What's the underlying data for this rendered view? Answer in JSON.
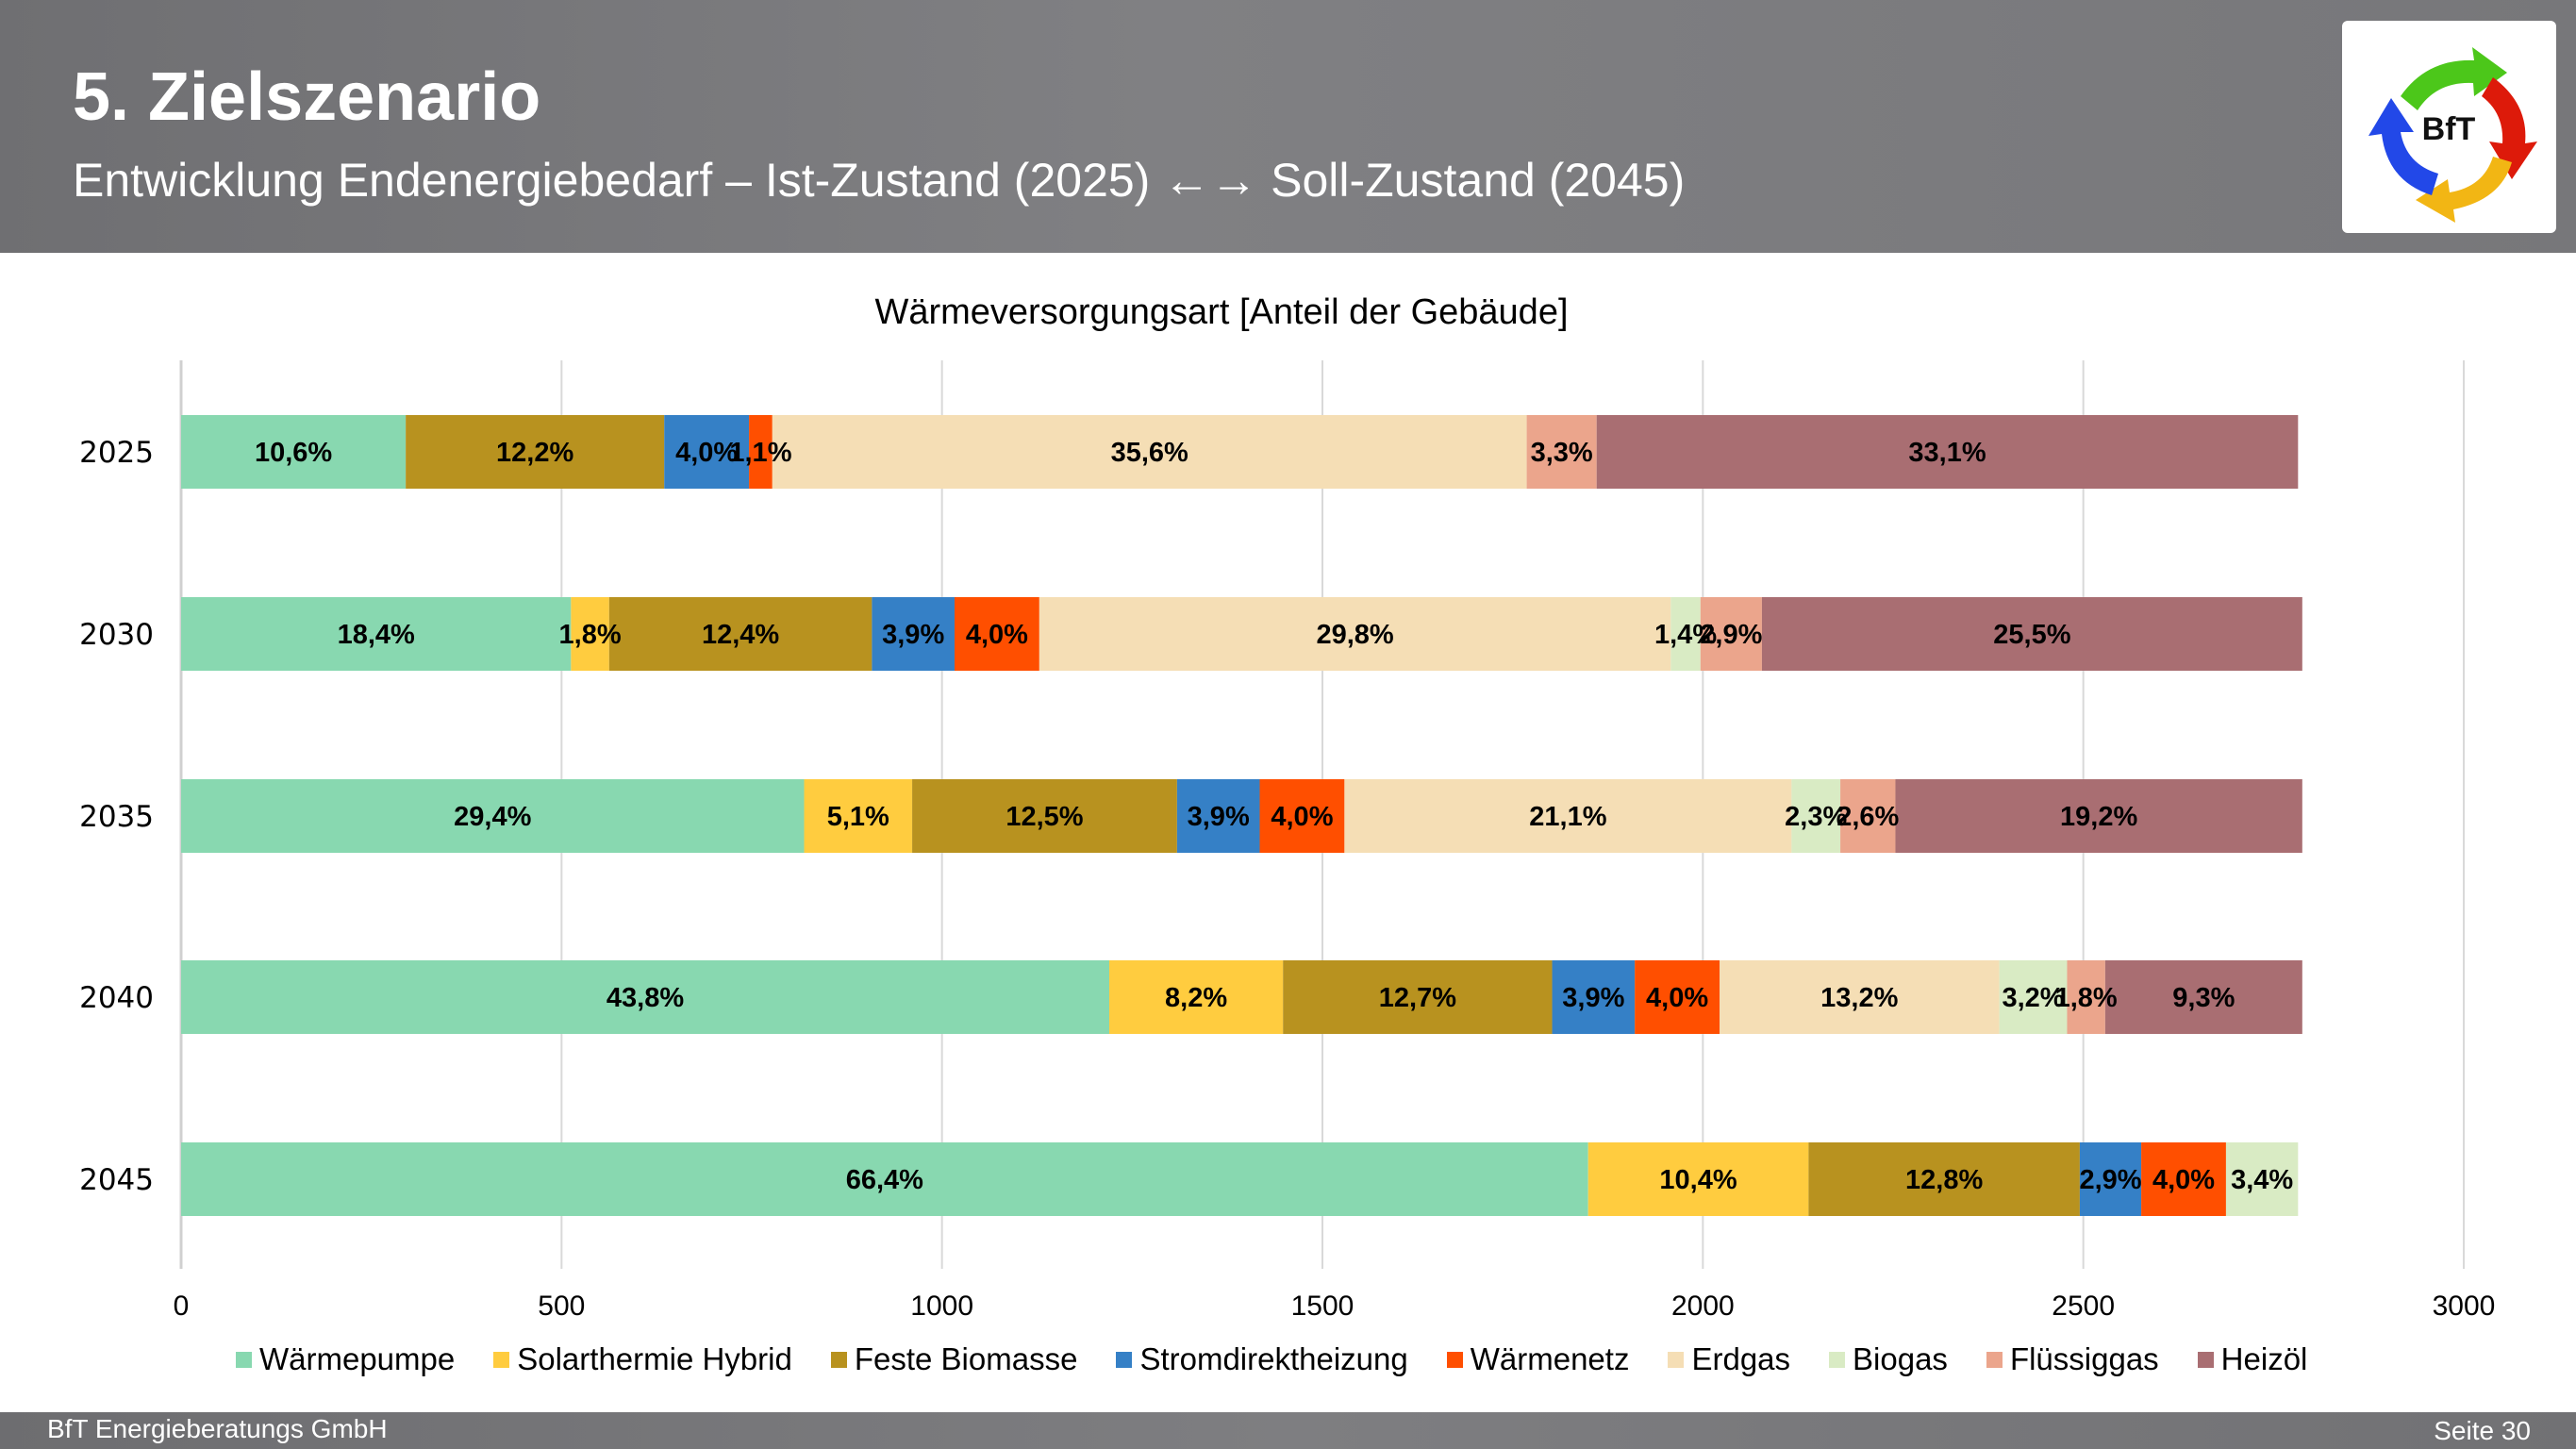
{
  "header": {
    "title": "5. Zielszenario",
    "subtitle": "Entwicklung Endenergiebedarf – Ist-Zustand (2025) ←→ Soll-Zustand (2045)",
    "logo_text": "BfT",
    "logo_icon": "recycle-arrows-logo-icon"
  },
  "footer": {
    "company": "BfT Energieberatungs GmbH",
    "page": "Seite 30"
  },
  "chart_data": {
    "type": "bar",
    "orientation": "horizontal",
    "stacked": true,
    "title": "Wärmeversorgungsart [Anteil der Gebäude]",
    "xlabel": "",
    "ylabel": "",
    "xlim": [
      0,
      3000
    ],
    "xticks": [
      "0",
      "500",
      "1000",
      "1500",
      "2000",
      "2500",
      "3000"
    ],
    "grid": true,
    "legend_position": "bottom",
    "categories": [
      "2025",
      "2030",
      "2035",
      "2040",
      "2045"
    ],
    "total_per_category": 2785,
    "series": [
      {
        "name": "Wärmepumpe",
        "color": "#88d8b0",
        "percent": [
          10.6,
          18.4,
          29.4,
          43.8,
          66.4
        ],
        "labels": [
          "10,6%",
          "18,4%",
          "29,4%",
          "43,8%",
          "66,4%"
        ]
      },
      {
        "name": "Solarthermie Hybrid",
        "color": "#ffcc3f",
        "percent": [
          0,
          1.8,
          5.1,
          8.2,
          10.4
        ],
        "labels": [
          "",
          "1,8%",
          "5,1%",
          "8,2%",
          "10,4%"
        ]
      },
      {
        "name": "Feste Biomasse",
        "color": "#b8921f",
        "percent": [
          12.2,
          12.4,
          12.5,
          12.7,
          12.8
        ],
        "labels": [
          "12,2%",
          "12,4%",
          "12,5%",
          "12,7%",
          "12,8%"
        ]
      },
      {
        "name": "Stromdirektheizung",
        "color": "#3580c6",
        "percent": [
          4.0,
          3.9,
          3.9,
          3.9,
          2.9
        ],
        "labels": [
          "4,0%",
          "3,9%",
          "3,9%",
          "3,9%",
          "2,9%"
        ]
      },
      {
        "name": "Wärmenetz",
        "color": "#ff4f00",
        "percent": [
          1.1,
          4.0,
          4.0,
          4.0,
          4.0
        ],
        "labels": [
          "1,1%",
          "4,0%",
          "4,0%",
          "4,0%",
          "4,0%"
        ]
      },
      {
        "name": "Erdgas",
        "color": "#f5deb5",
        "percent": [
          35.6,
          29.8,
          21.1,
          13.2,
          0
        ],
        "labels": [
          "35,6%",
          "29,8%",
          "21,1%",
          "13,2%",
          ""
        ]
      },
      {
        "name": "Biogas",
        "color": "#d9ebc4",
        "percent": [
          0,
          1.4,
          2.3,
          3.2,
          3.4
        ],
        "labels": [
          "",
          "1,4%",
          "2,3%",
          "3,2%",
          "3,4%"
        ]
      },
      {
        "name": "Flüssiggas",
        "color": "#eba58c",
        "percent": [
          3.3,
          2.9,
          2.6,
          1.8,
          0
        ],
        "labels": [
          "3,3%",
          "2,9%",
          "2,6%",
          "1,8%",
          ""
        ]
      },
      {
        "name": "Heizöl",
        "color": "#a96e72",
        "percent": [
          33.1,
          25.5,
          19.2,
          9.3,
          0
        ],
        "labels": [
          "33,1%",
          "25,5%",
          "19,2%",
          "9,3%",
          ""
        ]
      }
    ]
  }
}
